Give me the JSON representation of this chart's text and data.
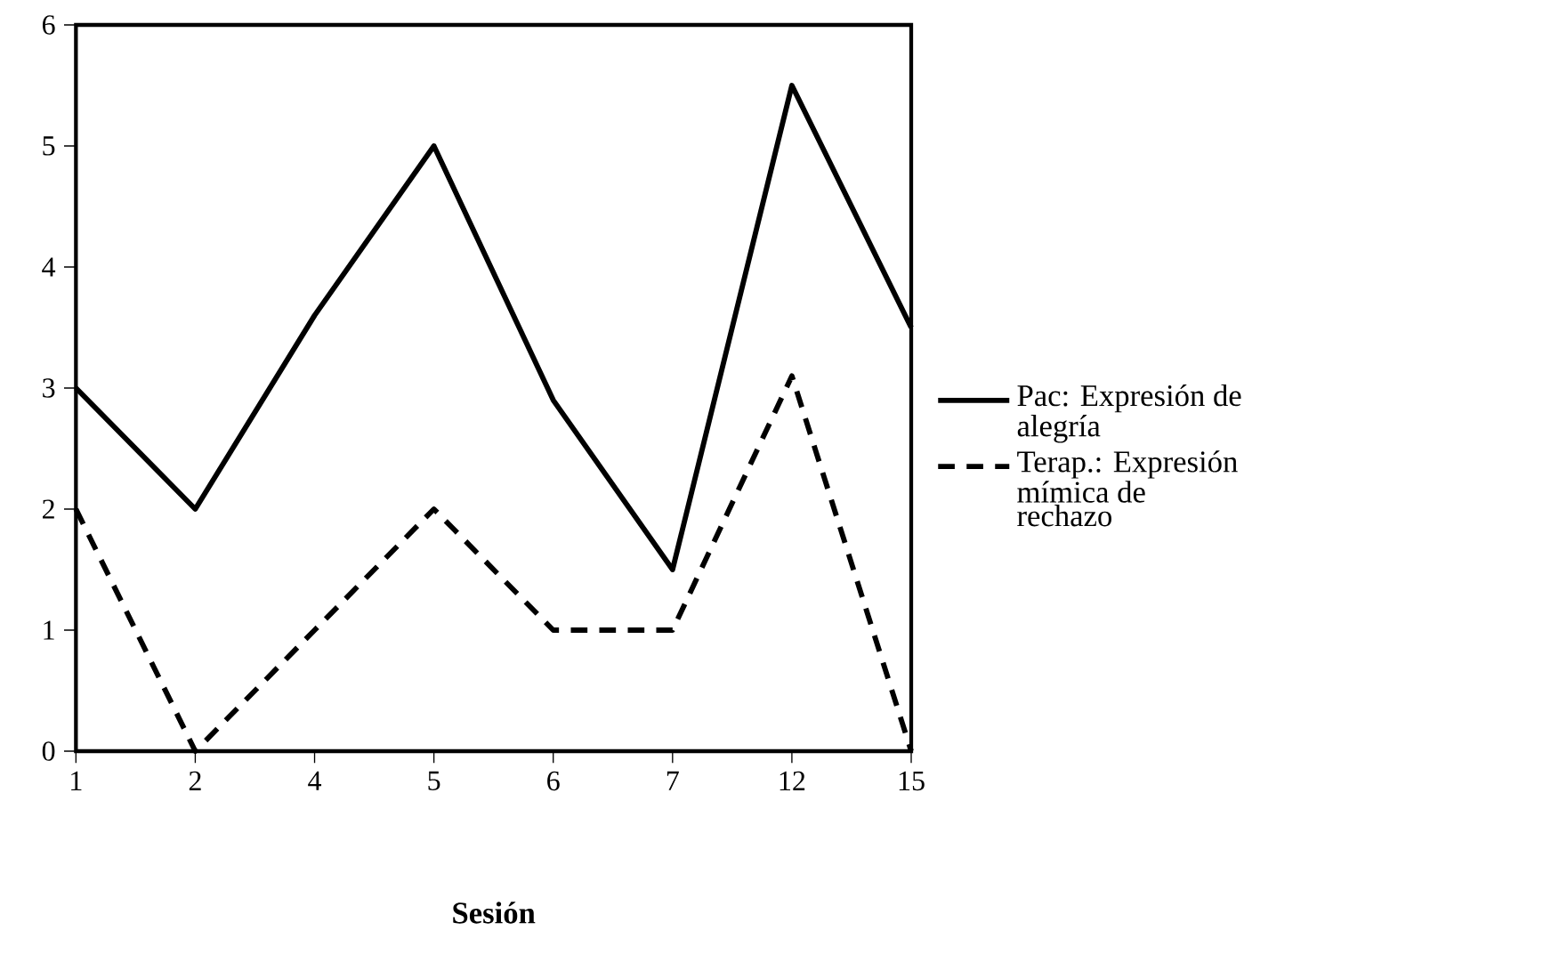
{
  "chart_data": {
    "type": "line",
    "xlabel": "Sesión",
    "categories": [
      "1",
      "2",
      "4",
      "5",
      "6",
      "7",
      "12",
      "15"
    ],
    "series": [
      {
        "name": "Pac: Expresión de alegría",
        "color": "#000000",
        "line_style": "solid",
        "values": [
          3,
          2,
          3.6,
          5,
          2.9,
          1.5,
          5.5,
          3.5
        ]
      },
      {
        "name": "Terap.: Expresión mímica de rechazo",
        "color": "#000000",
        "line_style": "dashed",
        "values": [
          2,
          0,
          1,
          2,
          1,
          1,
          3.1,
          0
        ]
      }
    ],
    "ylim": [
      0,
      6
    ],
    "yticks": [
      0,
      1,
      2,
      3,
      4,
      5,
      6
    ],
    "grid": false,
    "legend": "right",
    "marker": "none"
  }
}
